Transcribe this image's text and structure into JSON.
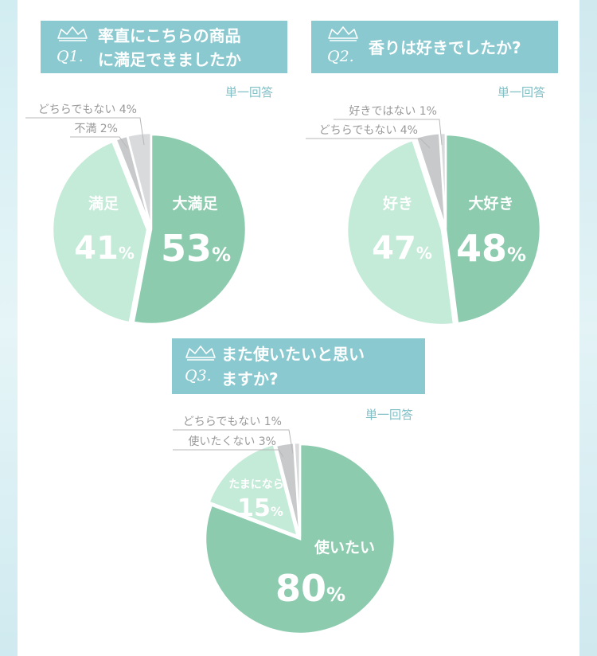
{
  "answer_type": "単一回答",
  "colors": {
    "dark_green": "#8dcbaf",
    "light_green": "#c4ead8",
    "gray": "#c7c9cb",
    "light_gray": "#d9dadc",
    "header": "#8ac9cf"
  },
  "questions": [
    {
      "label": "Q1.",
      "title_line1": "率直にこちらの商品",
      "title_line2": "に満足できましたか"
    },
    {
      "label": "Q2.",
      "title_line1": "香りは好きでしたか?",
      "title_line2": ""
    },
    {
      "label": "Q3.",
      "title_line1": "また使いたいと思い",
      "title_line2": "ますか?"
    }
  ],
  "chart_data": [
    {
      "type": "pie",
      "question": "Q1",
      "slices": [
        {
          "name": "大満足",
          "value": 53,
          "display": "53"
        },
        {
          "name": "満足",
          "value": 41,
          "display": "41"
        },
        {
          "name": "不満",
          "value": 2,
          "display": "2"
        },
        {
          "name": "どちらでもない",
          "value": 4,
          "display": "4"
        }
      ]
    },
    {
      "type": "pie",
      "question": "Q2",
      "slices": [
        {
          "name": "大好き",
          "value": 48,
          "display": "48"
        },
        {
          "name": "好き",
          "value": 47,
          "display": "47"
        },
        {
          "name": "どちらでもない",
          "value": 4,
          "display": "4"
        },
        {
          "name": "好きではない",
          "value": 1,
          "display": "1"
        }
      ]
    },
    {
      "type": "pie",
      "question": "Q3",
      "slices": [
        {
          "name": "使いたい",
          "value": 80,
          "display": "80"
        },
        {
          "name": "たまになら",
          "value": 15,
          "display": "15"
        },
        {
          "name": "使いたくない",
          "value": 3,
          "display": "3"
        },
        {
          "name": "どちらでもない",
          "value": 1,
          "display": "1"
        }
      ]
    }
  ]
}
